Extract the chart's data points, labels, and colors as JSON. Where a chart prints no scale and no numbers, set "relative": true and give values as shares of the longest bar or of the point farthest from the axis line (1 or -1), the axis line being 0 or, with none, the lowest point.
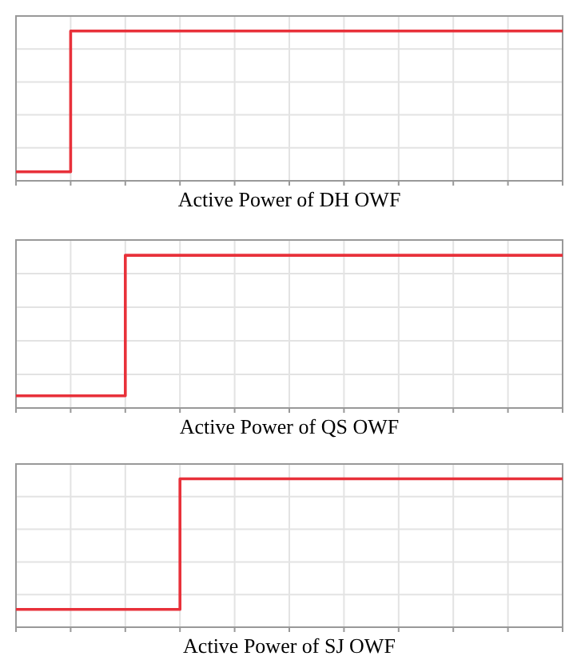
{
  "chart_data": [
    {
      "type": "step",
      "title": "Active Power of DH OWF",
      "relative": true,
      "grid": true,
      "categories": [
        null,
        null,
        null,
        null,
        null,
        null,
        null,
        null,
        null,
        null,
        null
      ],
      "series": [
        {
          "color": "#e8313a",
          "values": [
            0.06,
            1,
            1,
            1,
            1,
            1,
            1,
            1,
            1,
            1,
            1
          ]
        }
      ]
    },
    {
      "type": "step",
      "title": "Active Power of QS OWF",
      "relative": true,
      "grid": true,
      "categories": [
        null,
        null,
        null,
        null,
        null,
        null,
        null,
        null,
        null,
        null,
        null
      ],
      "series": [
        {
          "color": "#e8313a",
          "values": [
            0.08,
            0.08,
            1,
            1,
            1,
            1,
            1,
            1,
            1,
            1,
            1
          ]
        }
      ]
    },
    {
      "type": "step",
      "title": "Active Power of SJ OWF",
      "relative": true,
      "grid": true,
      "categories": [
        null,
        null,
        null,
        null,
        null,
        null,
        null,
        null,
        null,
        null,
        null
      ],
      "series": [
        {
          "color": "#e8313a",
          "values": [
            0.12,
            0.12,
            0.12,
            1,
            1,
            1,
            1,
            1,
            1,
            1,
            1
          ]
        }
      ]
    }
  ]
}
